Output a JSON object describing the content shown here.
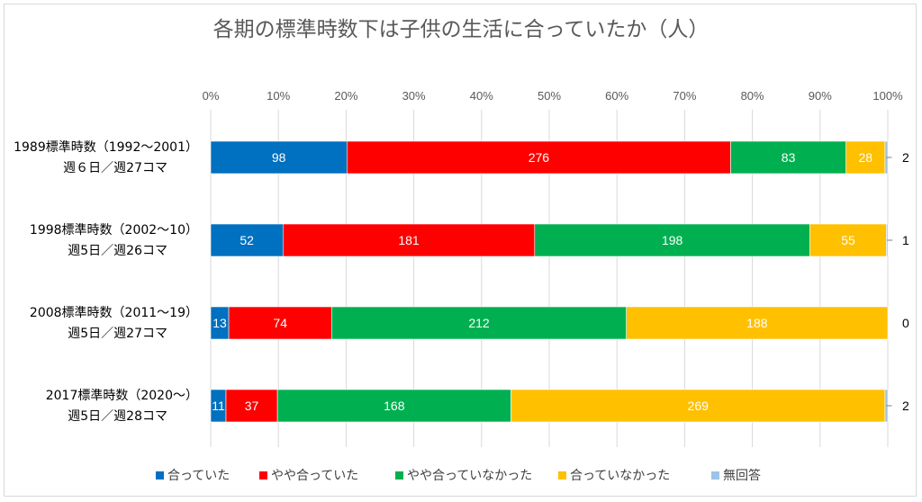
{
  "chart_data": {
    "type": "bar",
    "orientation": "horizontal",
    "stacked": "100%",
    "title": "各期の標準時数下は子供の生活に合っていたか（人）",
    "xlabel": "",
    "ylabel": "",
    "xlim": [
      0,
      100
    ],
    "ticks": [
      "0%",
      "10%",
      "20%",
      "30%",
      "40%",
      "50%",
      "60%",
      "70%",
      "80%",
      "90%",
      "100%"
    ],
    "grid": true,
    "legend_position": "bottom",
    "categories": [
      {
        "line1": "1989標準時数（1992～2001）",
        "line2": "週６日／週27コマ"
      },
      {
        "line1": "1998標準時数（2002～10）",
        "line2": "週5日／週26コマ"
      },
      {
        "line1": "2008標準時数（2011～19）",
        "line2": "週5日／週27コマ"
      },
      {
        "line1": "2017標準時数（2020～）",
        "line2": "週5日／週28コマ"
      }
    ],
    "series": [
      {
        "name": "合っていた",
        "color": "#0070C0",
        "values": [
          98,
          52,
          13,
          11
        ]
      },
      {
        "name": "やや合っていた",
        "color": "#FF0000",
        "values": [
          276,
          181,
          74,
          37
        ]
      },
      {
        "name": "やや合っていなかった",
        "color": "#00B050",
        "values": [
          83,
          198,
          212,
          168
        ]
      },
      {
        "name": "合っていなかった",
        "color": "#FFC000",
        "values": [
          28,
          55,
          188,
          269
        ]
      },
      {
        "name": "無回答",
        "color": "#9DC3E6",
        "values": [
          2,
          1,
          0,
          2
        ]
      }
    ]
  }
}
